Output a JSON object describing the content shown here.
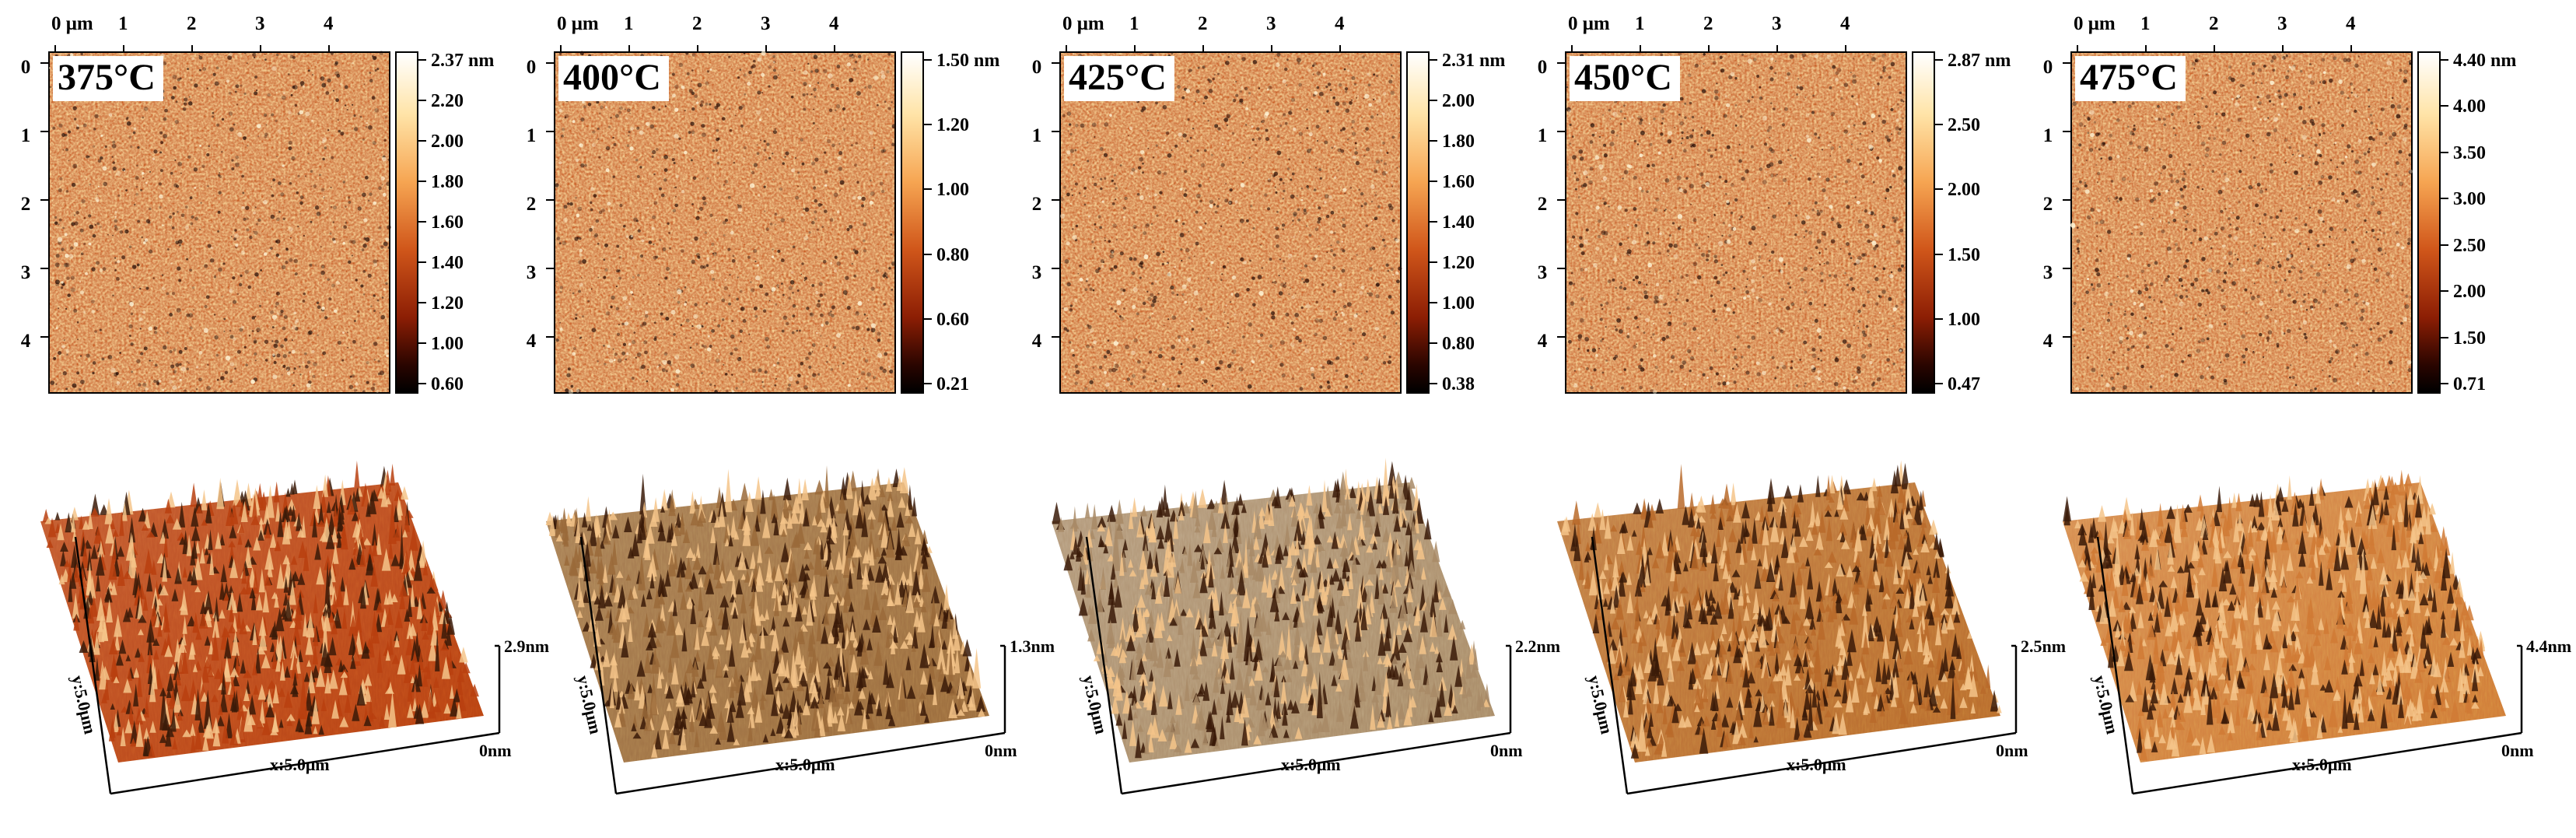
{
  "axis": {
    "x_ticks": [
      "0 μm",
      "1",
      "2",
      "3",
      "4"
    ],
    "y_ticks": [
      "0",
      "1",
      "2",
      "3",
      "4"
    ],
    "x3d_label": "x:5.0μm",
    "y3d_label": "y:5.0μm",
    "z3d_zero": "0nm"
  },
  "panels": [
    {
      "temp": "375°C",
      "cb_labels": [
        "2.37 nm",
        "2.20",
        "2.00",
        "1.80",
        "1.60",
        "1.40",
        "1.20",
        "1.00",
        "0.60"
      ],
      "z3d_max": "2.9nm",
      "seed": 11
    },
    {
      "temp": "400°C",
      "cb_labels": [
        "1.50 nm",
        "1.20",
        "1.00",
        "0.80",
        "0.60",
        "0.21"
      ],
      "z3d_max": "1.3nm",
      "seed": 23
    },
    {
      "temp": "425°C",
      "cb_labels": [
        "2.31 nm",
        "2.00",
        "1.80",
        "1.60",
        "1.40",
        "1.20",
        "1.00",
        "0.80",
        "0.38"
      ],
      "z3d_max": "2.2nm",
      "seed": 37
    },
    {
      "temp": "450°C",
      "cb_labels": [
        "2.87 nm",
        "2.50",
        "2.00",
        "1.50",
        "1.00",
        "0.47"
      ],
      "z3d_max": "2.5nm",
      "seed": 41
    },
    {
      "temp": "475°C",
      "cb_labels": [
        "4.40 nm",
        "4.00",
        "3.50",
        "3.00",
        "2.50",
        "2.00",
        "1.50",
        "0.71"
      ],
      "z3d_max": "4.4nm",
      "seed": 53
    }
  ],
  "colors": {
    "afm_dark": "#1a0400",
    "afm_mid": "#c8520f",
    "afm_light": "#ffe1a0",
    "surface_375": "#b8400f",
    "surface_400": "#9a6a3a",
    "surface_425": "#a88a66",
    "surface_450": "#b86a2a",
    "surface_475": "#d07a35"
  }
}
